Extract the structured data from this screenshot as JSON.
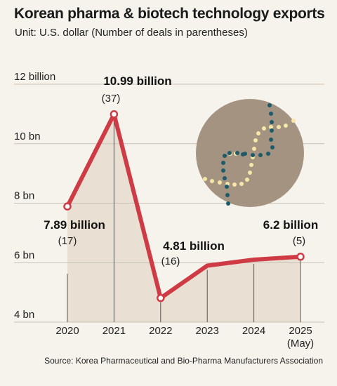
{
  "header": {
    "title": "Korean pharma & biotech technology exports",
    "subtitle": "Unit: U.S. dollar (Number of deals in parentheses)"
  },
  "source": "Source: Korea Pharmaceutical and Bio-Pharma Manufacturers Association",
  "chart_data": {
    "type": "line",
    "x": [
      "2020",
      "2021",
      "2022",
      "2023",
      "2024",
      "2025"
    ],
    "x_sublabels": [
      "",
      "",
      "",
      "",
      "",
      "(May)"
    ],
    "values": [
      7.89,
      10.99,
      4.81,
      5.9,
      6.1,
      6.2
    ],
    "ylim": [
      4,
      12
    ],
    "y_ticks": [
      4,
      6,
      8,
      10,
      12
    ],
    "y_tick_labels": [
      "4 bn",
      "6 bn",
      "8 bn",
      "10 bn",
      "12 billion"
    ],
    "annotations": [
      {
        "index": 0,
        "value": "7.89 billion",
        "count": "(17)"
      },
      {
        "index": 1,
        "value": "10.99 billion",
        "count": "(37)"
      },
      {
        "index": 2,
        "value": "4.81 billion",
        "count": "(16)"
      },
      {
        "index": 5,
        "value": "6.2 billion",
        "count": "(5)"
      }
    ],
    "grid": true,
    "colors": {
      "line": "#cf3b45",
      "area": "#e6dccf",
      "grid": "#c9c1b5",
      "marker_fill": "#ffffff"
    }
  },
  "illustration": {
    "name": "dna-helix-icon",
    "colors": {
      "circle": "#a49380",
      "dots_light": "#f6e6a8",
      "dots_dark": "#1d5a6a"
    }
  }
}
